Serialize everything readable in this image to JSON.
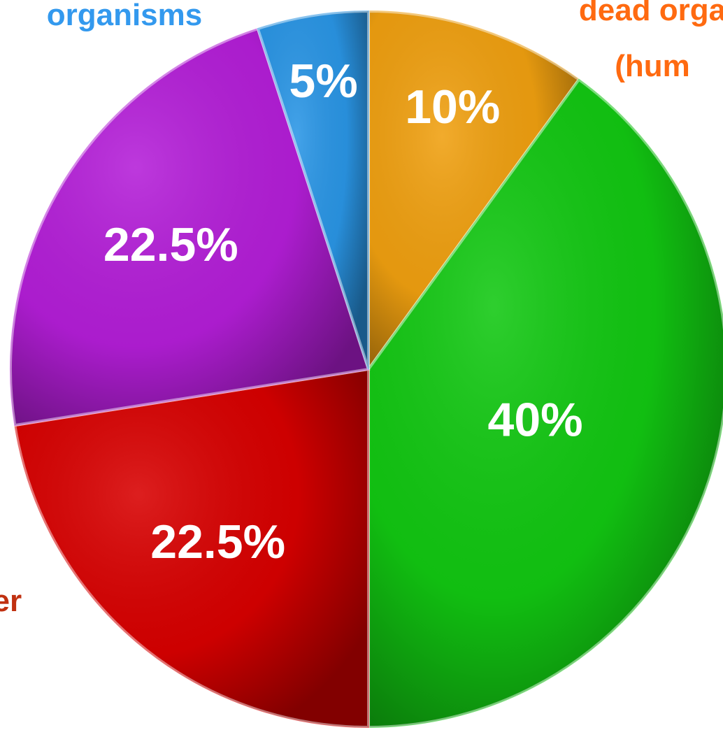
{
  "chart_data": {
    "type": "pie",
    "categories": [
      "dead orga\n(hum",
      null,
      "ter",
      null,
      "organisms"
    ],
    "values": [
      10,
      40,
      22.5,
      22.5,
      5
    ],
    "value_labels": [
      "10%",
      "40%",
      "22.5%",
      "22.5%",
      "5%"
    ],
    "colors": [
      "#f0a010",
      "#12c812",
      "#d80000",
      "#b41ed8",
      "#2a96e6"
    ],
    "label_colors": [
      "#ff6a10",
      null,
      "#c03010",
      null,
      "#3399ee"
    ]
  }
}
